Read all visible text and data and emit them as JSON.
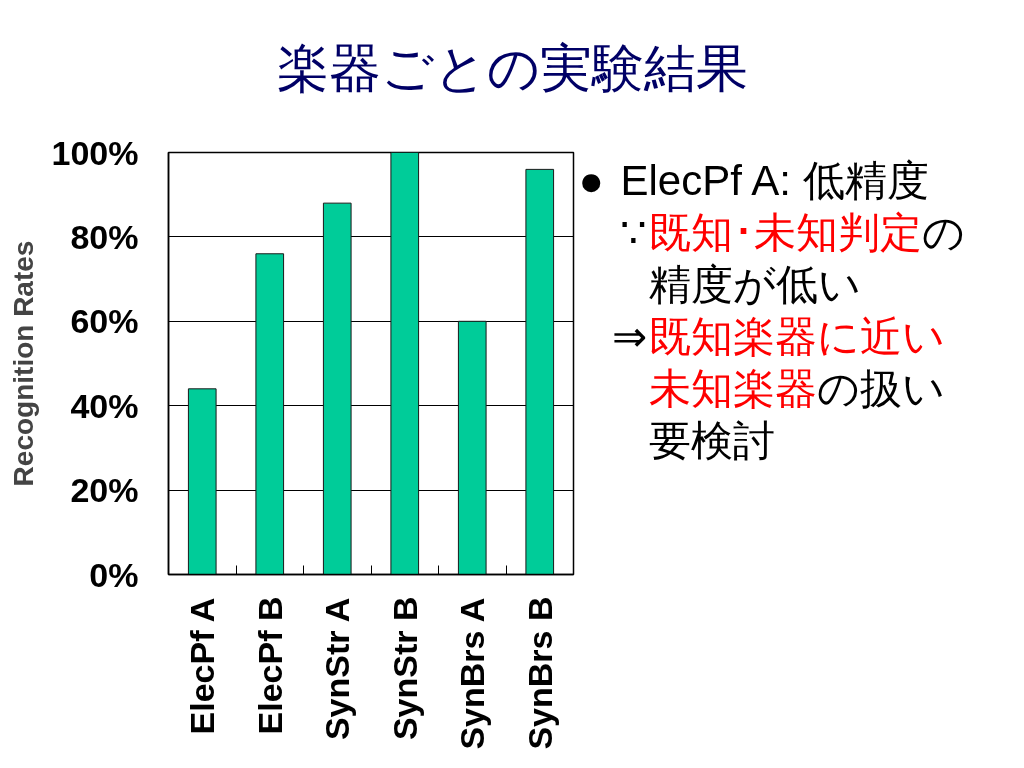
{
  "chart_data": {
    "type": "bar",
    "title": "楽器ごとの実験結果",
    "ylabel": "Recognition Rates",
    "categories": [
      "ElecPf A",
      "ElecPf B",
      "SynStr A",
      "SynStr B",
      "SynBrs A",
      "SynBrs B"
    ],
    "values": [
      44,
      76,
      88,
      100,
      60,
      96
    ],
    "color": "#00cc99",
    "ylim": [
      0,
      100
    ],
    "yticks": [
      {
        "value": 0,
        "label": "0%"
      },
      {
        "value": 20,
        "label": "20%"
      },
      {
        "value": 40,
        "label": "40%"
      },
      {
        "value": 60,
        "label": "60%"
      },
      {
        "value": 80,
        "label": "80%"
      },
      {
        "value": 100,
        "label": "100%"
      }
    ],
    "grid": "y",
    "annotations": [
      "●",
      "ElecPf A: 低精度",
      "∵",
      "既知･未知判定",
      "の",
      "精度が低い",
      "⇒",
      "既知楽器に近い",
      "未知楽器",
      "の扱い",
      "要検討"
    ]
  }
}
